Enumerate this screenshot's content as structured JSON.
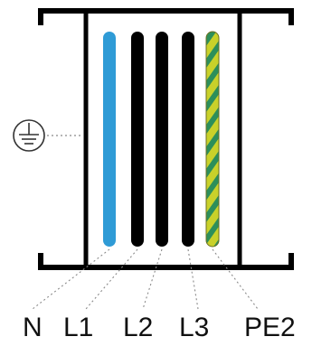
{
  "diagram": {
    "terminals": [
      {
        "id": "N",
        "label": "N",
        "color": "#2f9bd6"
      },
      {
        "id": "L1",
        "label": "L1",
        "color": "#000000"
      },
      {
        "id": "L2",
        "label": "L2",
        "color": "#000000"
      },
      {
        "id": "L3",
        "label": "L3",
        "color": "#000000"
      },
      {
        "id": "PE2",
        "label": "PE2",
        "color": "#c9d12a",
        "stripe_color": "#2d8f5a"
      }
    ],
    "ground_symbol": "earth-ground-icon",
    "colors": {
      "frame": "#000000",
      "dotted_leader": "#8a8a8a"
    }
  }
}
